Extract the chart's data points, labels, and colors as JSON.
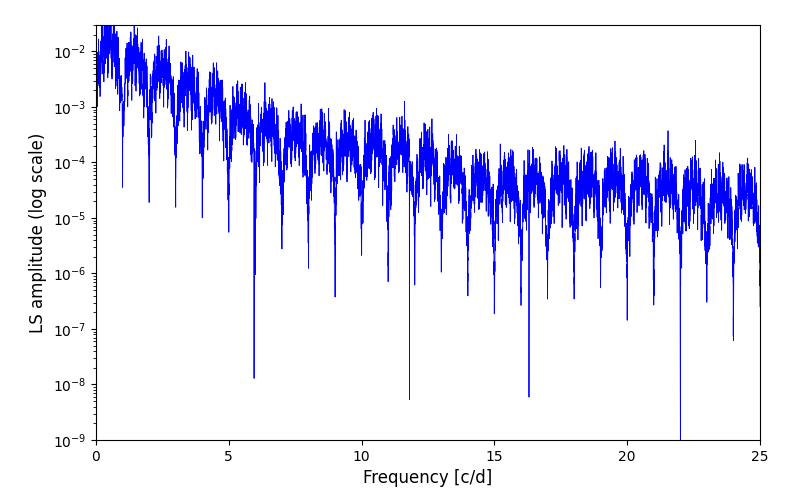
{
  "xlabel": "Frequency [c/d]",
  "ylabel": "LS amplitude (log scale)",
  "line_color": "#0000ff",
  "xlim": [
    0,
    25
  ],
  "ylim": [
    1e-09,
    0.03
  ],
  "figsize": [
    8.0,
    5.0
  ],
  "dpi": 100,
  "freq_max": 25.0,
  "seed": 42
}
